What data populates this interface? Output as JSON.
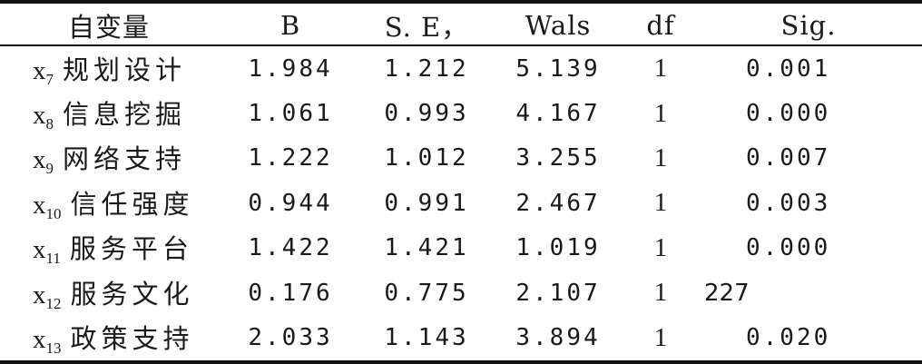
{
  "table": {
    "headers": {
      "var": "自变量",
      "b": "B",
      "se": "S. E，",
      "wals": "Wals",
      "df": "df",
      "sig": "Sig."
    },
    "rows": [
      {
        "var_x": "x",
        "var_sub": "7",
        "var_name": "规划设计",
        "b": "1.984",
        "se": "1.212",
        "wals": "5.139",
        "df": "1",
        "sig": "0.001"
      },
      {
        "var_x": "x",
        "var_sub": "8",
        "var_name": "信息挖掘",
        "b": "1.061",
        "se": "0.993",
        "wals": "4.167",
        "df": "1",
        "sig": "0.000"
      },
      {
        "var_x": "x",
        "var_sub": "9",
        "var_name": "网络支持",
        "b": "1.222",
        "se": "1.012",
        "wals": "3.255",
        "df": "1",
        "sig": "0.007"
      },
      {
        "var_x": "x",
        "var_sub": "10",
        "var_name": "信任强度",
        "b": "0.944",
        "se": "0.991",
        "wals": "2.467",
        "df": "1",
        "sig": "0.003"
      },
      {
        "var_x": "x",
        "var_sub": "11",
        "var_name": "服务平台",
        "b": "1.422",
        "se": "1.421",
        "wals": "1.019",
        "df": "1",
        "sig": "0.000"
      },
      {
        "var_x": "x",
        "var_sub": "12",
        "var_name": "服务文化",
        "b": "0.176",
        "se": "0.775",
        "wals": "2.107",
        "df": "1",
        "sig": "227"
      },
      {
        "var_x": "x",
        "var_sub": "13",
        "var_name": "政策支持",
        "b": "2.033",
        "se": "1.143",
        "wals": "3.894",
        "df": "1",
        "sig": "0.020"
      }
    ]
  }
}
